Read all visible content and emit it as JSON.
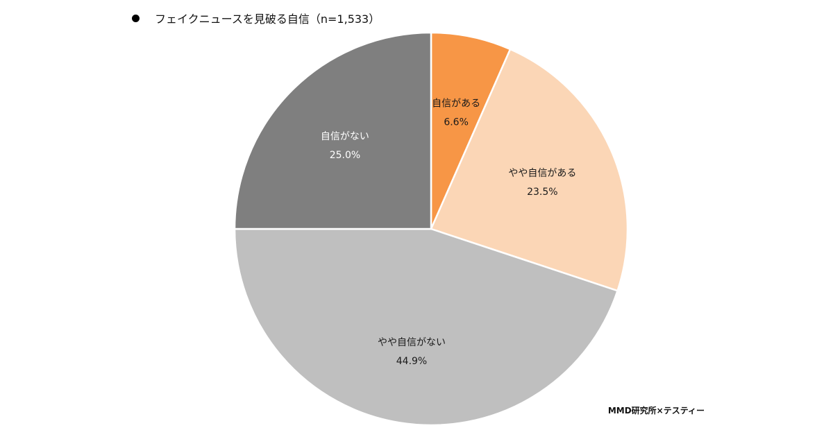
{
  "title": "フェイクニュースを見破る自信（n=1,533）",
  "credit": "MMD研究所×テスティー",
  "colors": {
    "text_dark": "#1a1a1a",
    "text_light": "#ffffff",
    "slice_border": "#ffffff"
  },
  "chart_data": {
    "type": "pie",
    "title": "フェイクニュースを見破る自信（n=1,533）",
    "start_angle_deg": 0,
    "direction": "clockwise",
    "slices": [
      {
        "label": "自信がある",
        "value": 6.6,
        "value_label": "6.6%",
        "color": "#f79646",
        "text_color": "#1a1a1a"
      },
      {
        "label": "やや自信がある",
        "value": 23.5,
        "value_label": "23.5%",
        "color": "#fbd6b6",
        "text_color": "#1a1a1a"
      },
      {
        "label": "やや自信がない",
        "value": 44.9,
        "value_label": "44.9%",
        "color": "#bfbfbf",
        "text_color": "#1a1a1a"
      },
      {
        "label": "自信がない",
        "value": 25.0,
        "value_label": "25.0%",
        "color": "#7f7f7f",
        "text_color": "#ffffff"
      }
    ]
  }
}
